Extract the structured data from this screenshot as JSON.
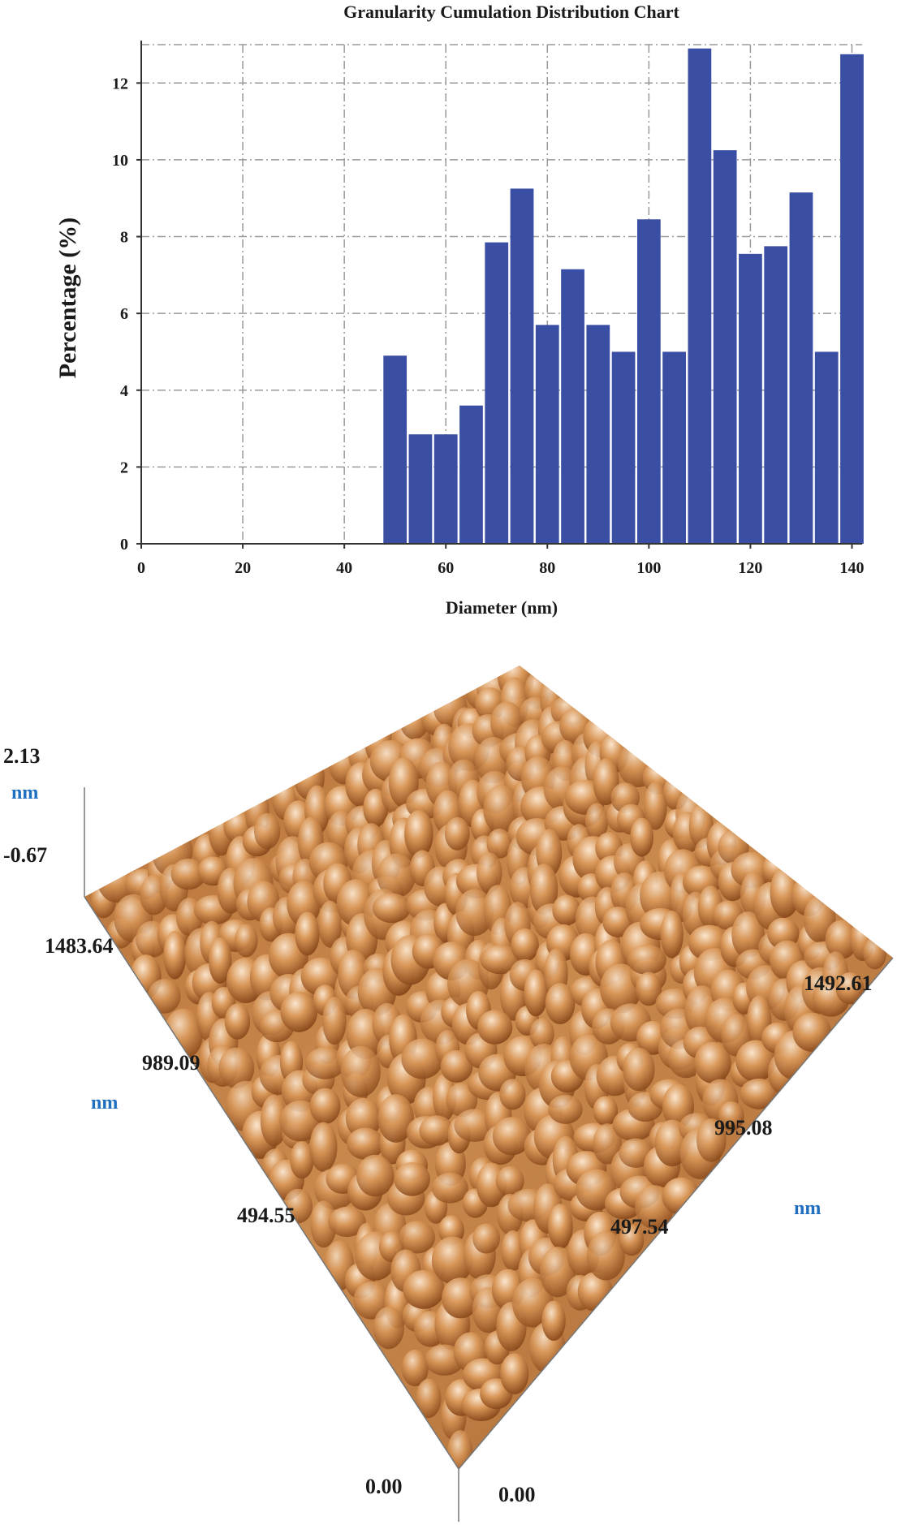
{
  "chart_data": {
    "type": "bar",
    "title": "Granularity Cumulation Distribution Chart",
    "xlabel": "Diameter (nm)",
    "ylabel": "Percentage (%)",
    "xlim": [
      0,
      142
    ],
    "ylim": [
      0,
      13
    ],
    "x_ticks": [
      0,
      20,
      40,
      60,
      80,
      100,
      120,
      140
    ],
    "y_ticks": [
      0,
      2,
      4,
      6,
      8,
      10,
      12
    ],
    "grid": true,
    "bar_color": "#3a4fa3",
    "bar_width": 4.6,
    "x": [
      50,
      55,
      60,
      65,
      70,
      75,
      80,
      85,
      90,
      95,
      100,
      105,
      110,
      115,
      120,
      125,
      130,
      135,
      140
    ],
    "values": [
      4.9,
      2.85,
      2.85,
      3.6,
      7.85,
      9.25,
      5.7,
      7.15,
      5.7,
      5.0,
      8.45,
      5.0,
      12.9,
      10.25,
      7.55,
      7.75,
      9.15,
      5.0,
      12.75
    ]
  },
  "afm": {
    "z_max": "2.13",
    "z_unit": "nm",
    "z_min": "-0.67",
    "left_axis_ticks": [
      "1483.64",
      "989.09",
      "494.55",
      "0.00"
    ],
    "left_axis_unit": "nm",
    "right_axis_ticks": [
      "0.00",
      "497.54",
      "995.08",
      "1492.61"
    ],
    "right_axis_unit": "nm",
    "surface_color": "#c47a3d"
  }
}
